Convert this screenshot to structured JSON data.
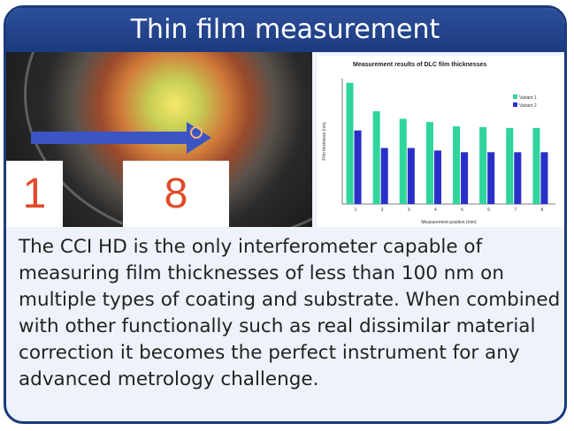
{
  "title": "Thin film measurement",
  "photo": {
    "label_left": "1",
    "label_right": "8"
  },
  "description": "The CCI HD is the only interferometer capable of measuring film thicknesses of less than 100 nm on multiple types of coating and substrate. When combined with other functionally such as real dissimilar material correction it becomes the perfect instrument for any advanced metrology challenge.",
  "chart_data": {
    "type": "bar",
    "title": "Measurement results of DLC film thicknesses",
    "xlabel": "Measurement position (mm)",
    "ylabel": "Film thickness (nm)",
    "categories": [
      "1",
      "2",
      "3",
      "4",
      "5",
      "6",
      "7",
      "8"
    ],
    "series": [
      {
        "name": "Variant 1",
        "color": "#2fd59a",
        "values": [
          1450,
          1110,
          1020,
          980,
          930,
          920,
          910,
          910
        ]
      },
      {
        "name": "Variant 2",
        "color": "#2b2fc9",
        "values": [
          880,
          670,
          670,
          640,
          620,
          620,
          620,
          620
        ]
      }
    ],
    "ylim": [
      0,
      1500
    ],
    "legend": "top-right",
    "grid": false
  }
}
